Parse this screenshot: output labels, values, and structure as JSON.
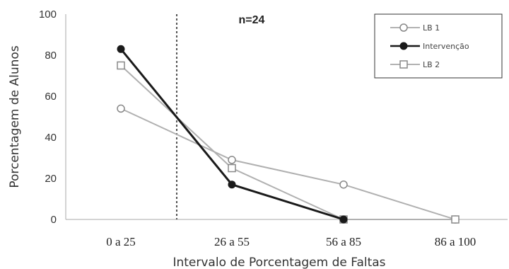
{
  "chart_data": {
    "type": "line",
    "categories": [
      "0 a 25",
      "26 a 55",
      "56 a 85",
      "86 a 100"
    ],
    "series": [
      {
        "name": "LB 1",
        "values": [
          54,
          29,
          17,
          0
        ],
        "color": "#b0b0b0",
        "marker": "circle"
      },
      {
        "name": "Intervenção",
        "values": [
          83,
          17,
          0,
          null
        ],
        "color": "#1a1a1a",
        "marker": "circle-filled"
      },
      {
        "name": "LB 2",
        "values": [
          75,
          25,
          0,
          0
        ],
        "color": "#b0b0b0",
        "marker": "square"
      }
    ],
    "title": "",
    "annotation": "n=24",
    "xlabel": "Intervalo de Porcentagem de Faltas",
    "ylabel": "Porcentagem de Alunos",
    "ylim": [
      0,
      100
    ],
    "yticks": [
      "0",
      "20",
      "40",
      "60",
      "80",
      "100"
    ],
    "grid": false,
    "legend_position": "top-right",
    "phase_line": "dotted vertical line between 0 a 25 and 26 a 55"
  }
}
